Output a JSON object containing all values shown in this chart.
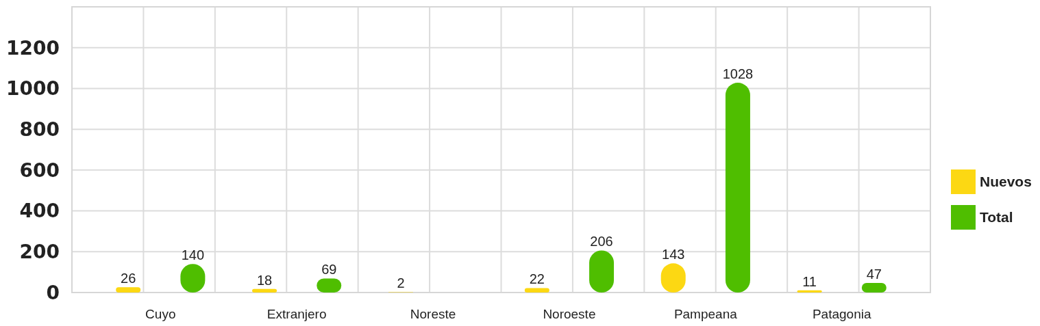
{
  "chart_data": {
    "type": "bar",
    "categories": [
      "Cuyo",
      "Extranjero",
      "Noreste",
      "Noroeste",
      "Pampeana",
      "Patagonia"
    ],
    "series": [
      {
        "name": "Nuevos",
        "color": "#fcd813",
        "values": [
          26,
          18,
          2,
          22,
          143,
          11
        ]
      },
      {
        "name": "Total",
        "color": "#4fbe00",
        "values": [
          140,
          69,
          null,
          206,
          1028,
          47
        ]
      }
    ],
    "ylim": [
      0,
      1400
    ],
    "yticks": [
      0,
      200,
      400,
      600,
      800,
      1000,
      1200
    ],
    "grid": true,
    "legend": "right",
    "data_labels": true
  }
}
